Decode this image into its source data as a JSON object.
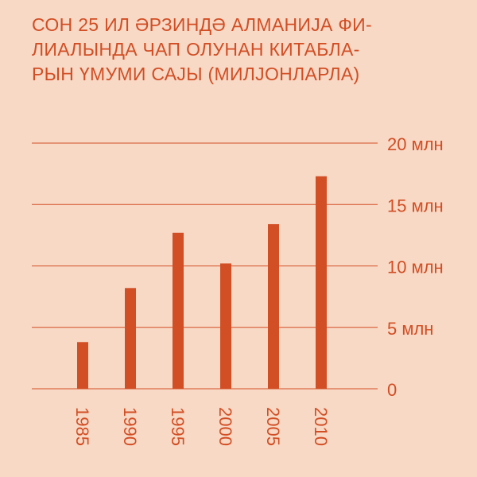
{
  "title_lines": [
    "СОН 25 ИЛ ӘРЗИНДӘ АЛМАНИЈА ФИ-",
    "ЛИАЛЫНДА ЧАП ОЛУНАН КИТАБЛА-",
    "РЫН ҮМУМИ САЈЫ (МИЛЈОНЛАРЛА)"
  ],
  "colors": {
    "background": "#f8d9c6",
    "accent": "#d24e24"
  },
  "chart_data": {
    "type": "bar",
    "title": "СОН 25 ИЛ ӘРЗИНДӘ АЛМАНИЈА ФИЛИАЛЫНДА ЧАП ОЛУНАН КИТАБЛАРЫН ҮМУМИ САЈЫ (МИЛЈОНЛАРЛА)",
    "categories": [
      "1985",
      "1990",
      "1995",
      "2000",
      "2005",
      "2010"
    ],
    "values": [
      3.8,
      8.2,
      12.7,
      10.2,
      13.4,
      17.3
    ],
    "ylim": [
      0,
      20
    ],
    "y_ticks": [
      0,
      5,
      10,
      15,
      20
    ],
    "y_tick_labels": [
      "0",
      "5 млн",
      "10 млн",
      "15 млн",
      "20 млн"
    ],
    "grid": true,
    "y_axis_side": "right"
  }
}
